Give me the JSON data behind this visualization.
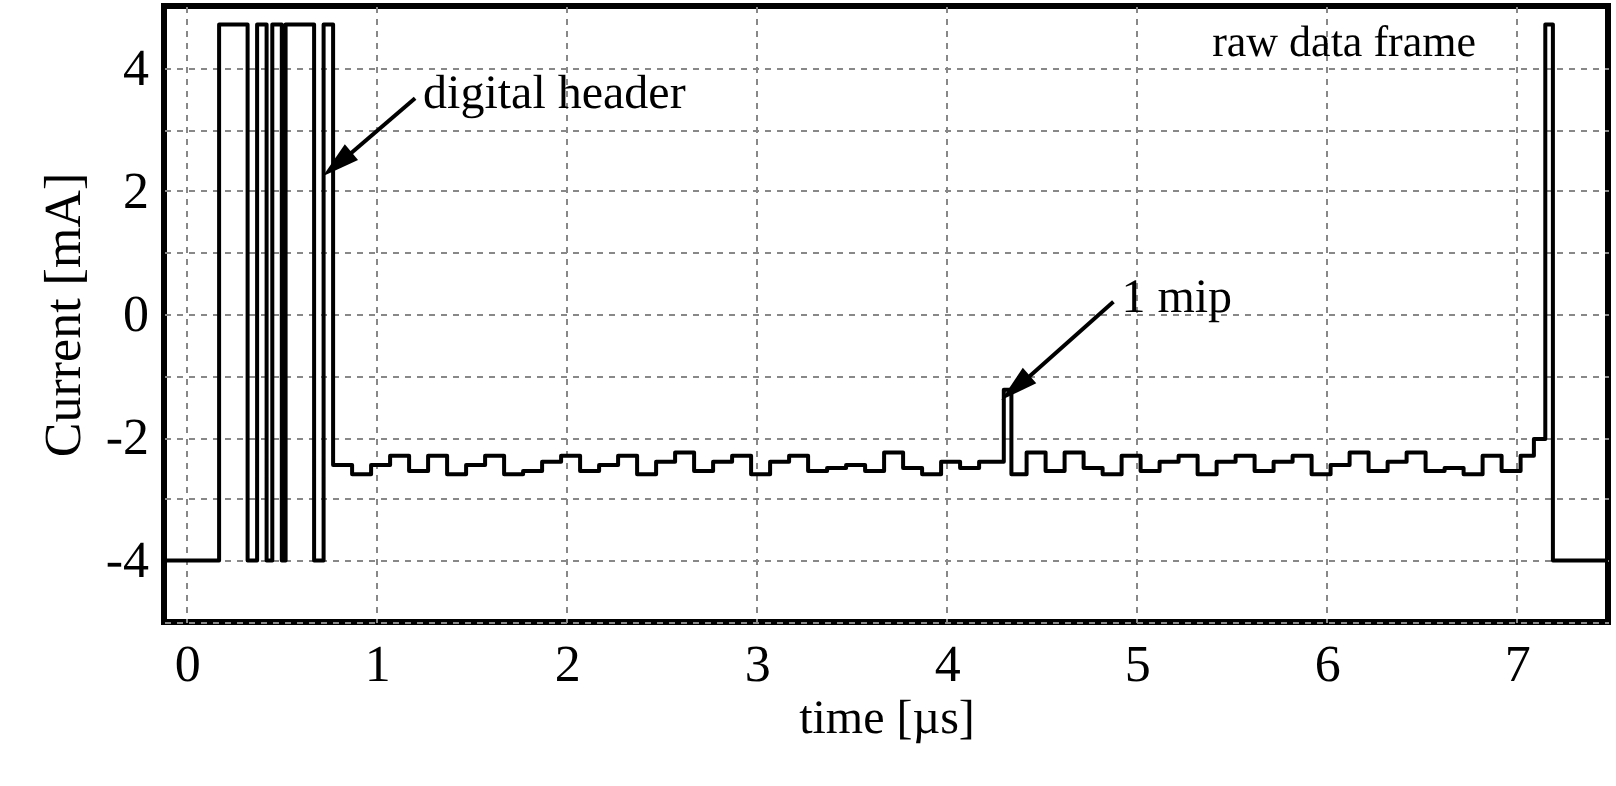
{
  "chart_data": {
    "type": "step",
    "xlabel": "time [µs]",
    "ylabel": "Current [mA]",
    "xlim": [
      -0.12,
      7.48
    ],
    "ylim": [
      -5,
      5
    ],
    "xticks": [
      0,
      1,
      2,
      3,
      4,
      5,
      6,
      7
    ],
    "yticks": [
      {
        "value": -5,
        "label": null
      },
      -4,
      {
        "value": -3,
        "label": null
      },
      -2,
      {
        "value": -1,
        "label": null
      },
      0,
      {
        "value": 1,
        "label": null
      },
      2,
      {
        "value": 3,
        "label": null
      },
      4
    ],
    "grid": true,
    "line_style": "solid",
    "series": [
      {
        "color": "#000000",
        "x": [
          -0.12,
          0.17,
          0.32,
          0.37,
          0.42,
          0.45,
          0.5,
          0.52,
          0.67,
          0.72,
          0.77,
          0.87,
          0.97,
          1.07,
          1.17,
          1.27,
          1.37,
          1.47,
          1.57,
          1.67,
          1.77,
          1.87,
          1.97,
          2.07,
          2.17,
          2.27,
          2.37,
          2.47,
          2.57,
          2.67,
          2.77,
          2.87,
          2.97,
          3.07,
          3.17,
          3.27,
          3.37,
          3.47,
          3.57,
          3.67,
          3.77,
          3.87,
          3.97,
          4.07,
          4.17,
          4.3,
          4.34,
          4.42,
          4.52,
          4.62,
          4.72,
          4.82,
          4.92,
          5.02,
          5.12,
          5.22,
          5.32,
          5.42,
          5.52,
          5.62,
          5.72,
          5.82,
          5.92,
          6.02,
          6.12,
          6.22,
          6.32,
          6.42,
          6.52,
          6.62,
          6.72,
          6.82,
          6.92,
          7.02,
          7.09,
          7.15,
          7.19,
          7.48
        ],
        "values": [
          -4.0,
          4.7,
          -4.0,
          4.7,
          -4.0,
          4.7,
          -4.0,
          4.7,
          -4.0,
          4.7,
          -2.45,
          -2.6,
          -2.45,
          -2.3,
          -2.55,
          -2.3,
          -2.6,
          -2.45,
          -2.3,
          -2.6,
          -2.55,
          -2.4,
          -2.3,
          -2.55,
          -2.45,
          -2.3,
          -2.6,
          -2.4,
          -2.25,
          -2.55,
          -2.4,
          -2.3,
          -2.6,
          -2.4,
          -2.3,
          -2.55,
          -2.5,
          -2.45,
          -2.55,
          -2.25,
          -2.5,
          -2.6,
          -2.4,
          -2.5,
          -2.4,
          -1.23,
          -2.6,
          -2.25,
          -2.55,
          -2.25,
          -2.5,
          -2.6,
          -2.3,
          -2.55,
          -2.4,
          -2.3,
          -2.6,
          -2.4,
          -2.3,
          -2.55,
          -2.4,
          -2.3,
          -2.6,
          -2.45,
          -2.25,
          -2.55,
          -2.4,
          -2.25,
          -2.55,
          -2.5,
          -2.6,
          -2.3,
          -2.55,
          -2.3,
          -2.03,
          4.7,
          -4.0,
          -4.05
        ]
      }
    ],
    "annotations": [
      {
        "text": "digital header",
        "x": 0.77,
        "y": 2.4
      },
      {
        "text": "1 mip",
        "x": 4.34,
        "y": -1.23
      },
      "raw data frame"
    ]
  }
}
